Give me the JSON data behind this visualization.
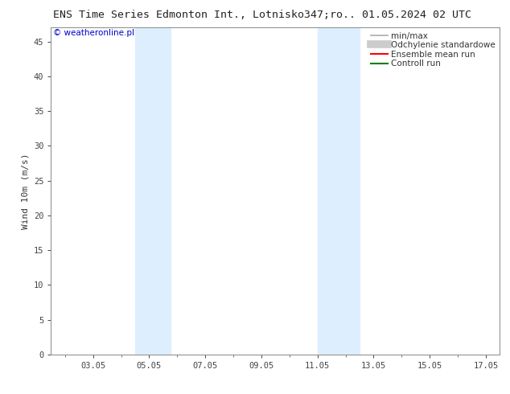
{
  "title": "ENS Time Series Edmonton Int., Lotnisko",
  "title_right": "347;ro.. 01.05.2024 02 UTC",
  "ylabel": "Wind 10m (m/s)",
  "watermark": "© weatheronline.pl",
  "watermark_color": "#0000cc",
  "xlim_min": 1.5,
  "xlim_max": 17.5,
  "ylim_min": 0,
  "ylim_max": 47,
  "yticks": [
    0,
    5,
    10,
    15,
    20,
    25,
    30,
    35,
    40,
    45
  ],
  "xtick_labels": [
    "03.05",
    "05.05",
    "07.05",
    "09.05",
    "11.05",
    "13.05",
    "15.05",
    "17.05"
  ],
  "xtick_positions": [
    3,
    5,
    7,
    9,
    11,
    13,
    15,
    17
  ],
  "shaded_bands": [
    {
      "xmin": 4.5,
      "xmax": 5.75
    },
    {
      "xmin": 11.0,
      "xmax": 12.5
    }
  ],
  "shade_color": "#ddeeff",
  "legend_entries": [
    {
      "label": "min/max",
      "color": "#aaaaaa",
      "lw": 1.2,
      "type": "line"
    },
    {
      "label": "Odchylenie standardowe",
      "color": "#cccccc",
      "lw": 7,
      "type": "line"
    },
    {
      "label": "Ensemble mean run",
      "color": "#ff0000",
      "lw": 1.5,
      "type": "line"
    },
    {
      "label": "Controll run",
      "color": "#008000",
      "lw": 1.5,
      "type": "line"
    }
  ],
  "bg_color": "#ffffff",
  "spine_color": "#888888",
  "tick_color": "#444444",
  "font_family": "DejaVu Sans Mono",
  "title_fontsize": 9.5,
  "legend_fontsize": 7.5,
  "ylabel_fontsize": 8,
  "tick_fontsize": 7.5,
  "watermark_fontsize": 7.5
}
